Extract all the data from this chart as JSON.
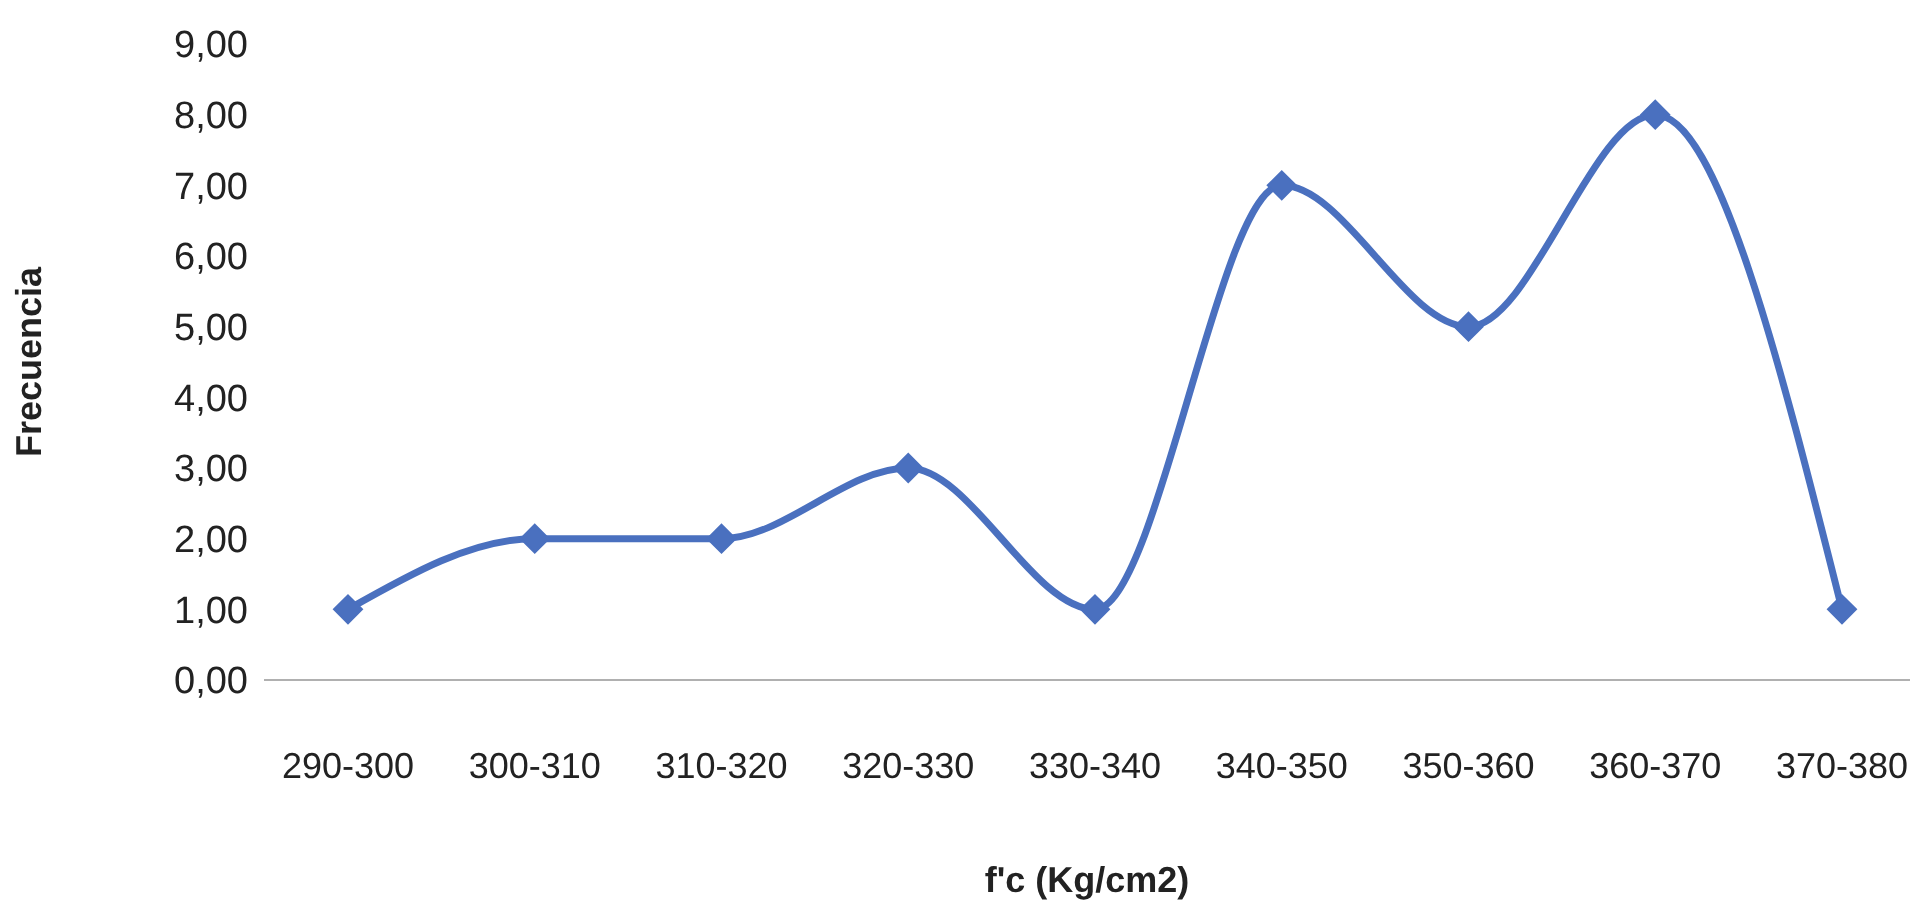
{
  "chart_data": {
    "type": "line",
    "xlabel": "f'c (Kg/cm2)",
    "ylabel": "Frecuencia",
    "categories": [
      "290-300",
      "300-310",
      "310-320",
      "320-330",
      "330-340",
      "340-350",
      "350-360",
      "360-370",
      "370-380"
    ],
    "series": [
      {
        "color": "#4a70bf",
        "values": [
          1,
          2,
          2,
          3,
          1,
          7,
          5,
          8,
          1
        ]
      }
    ],
    "ylim": [
      0,
      9
    ],
    "yticks": [
      {
        "value": 0,
        "label": "0,00"
      },
      {
        "value": 1,
        "label": "1,00"
      },
      {
        "value": 2,
        "label": "2,00"
      },
      {
        "value": 3,
        "label": "3,00"
      },
      {
        "value": 4,
        "label": "4,00"
      },
      {
        "value": 5,
        "label": "5,00"
      },
      {
        "value": 6,
        "label": "6,00"
      },
      {
        "value": 7,
        "label": "7,00"
      },
      {
        "value": 8,
        "label": "8,00"
      },
      {
        "value": 9,
        "label": "9,00"
      }
    ],
    "grid": false,
    "legend": false,
    "marker": "diamond",
    "line_style": "solid"
  }
}
